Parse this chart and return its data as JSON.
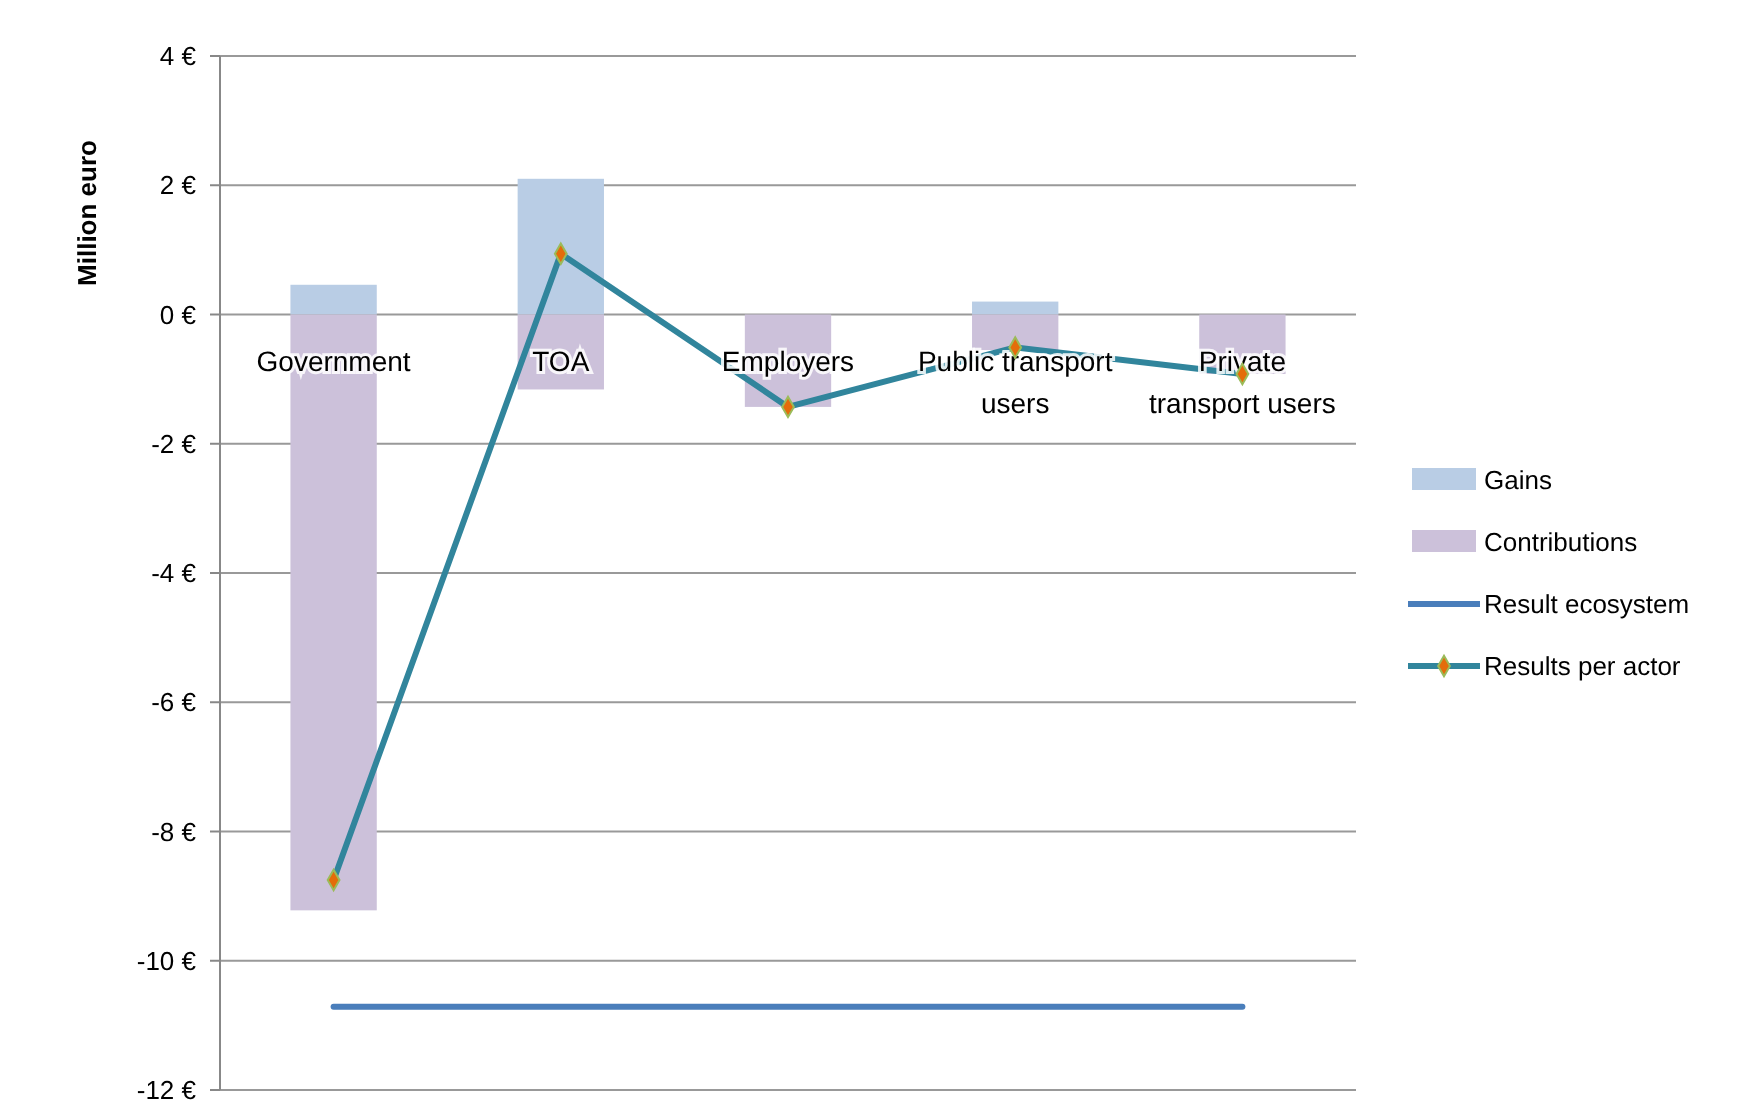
{
  "chart_data": {
    "type": "bar",
    "stacked": true,
    "ylabel": "Million euro",
    "categories": [
      "Government",
      "TOA",
      "Employers",
      "Public transport users",
      "Private transport users"
    ],
    "series": [
      {
        "name": "Gains",
        "color": "#b9cde5",
        "values": [
          0.46,
          2.1,
          0,
          0.2,
          0
        ]
      },
      {
        "name": "Contributions",
        "color": "#ccc1da",
        "values": [
          -9.22,
          -1.16,
          -1.43,
          -0.55,
          -0.92
        ]
      },
      {
        "name": "Result ecosystem",
        "type": "line",
        "color": "#4a7ebb",
        "marker": "none",
        "values": [
          -10.71,
          -10.71,
          -10.71,
          -10.71,
          -10.71
        ]
      },
      {
        "name": "Results per actor",
        "type": "line",
        "color": "#31859c",
        "marker": "diamond",
        "values": [
          -8.75,
          0.94,
          -1.43,
          -0.51,
          -0.92
        ]
      }
    ],
    "ylim": [
      -12,
      4
    ],
    "yticks": [
      {
        "value": 4,
        "label": "4 €"
      },
      {
        "value": 2,
        "label": "2 €"
      },
      {
        "value": 0,
        "label": "0 €"
      },
      {
        "value": -2,
        "label": "-2 €"
      },
      {
        "value": -4,
        "label": "-4 €"
      },
      {
        "value": -6,
        "label": "-6 €"
      },
      {
        "value": -8,
        "label": "-8 €"
      },
      {
        "value": -10,
        "label": "-10 €"
      },
      {
        "value": -12,
        "label": "-12 €"
      }
    ],
    "grid": "y",
    "legend": "right"
  }
}
